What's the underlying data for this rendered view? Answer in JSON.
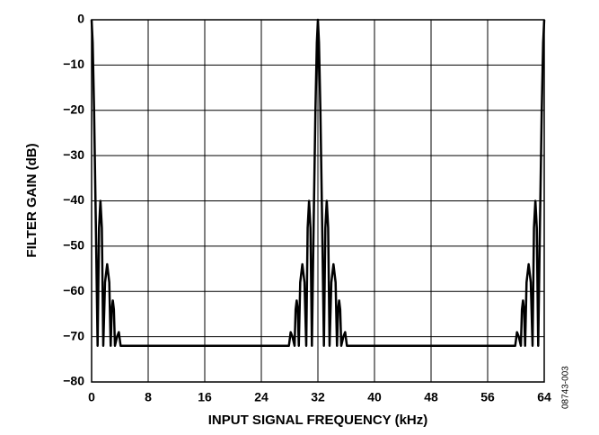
{
  "chart_data": {
    "type": "line",
    "x_label": "INPUT SIGNAL FREQUENCY (kHz)",
    "y_label": "FILTER GAIN (dB)",
    "annotation": "08743-003",
    "color": "#000000",
    "grid": true,
    "xlim": [
      0,
      64
    ],
    "ylim": [
      -80,
      0
    ],
    "xticks": [
      0,
      8,
      16,
      24,
      32,
      40,
      48,
      56,
      64
    ],
    "yticks": [
      0,
      {
        "value": -10,
        "label": "−10"
      },
      {
        "value": -20,
        "label": "−20"
      },
      {
        "value": -30,
        "label": "−30"
      },
      {
        "value": -40,
        "label": "−40"
      },
      {
        "value": -50,
        "label": "−50"
      },
      {
        "value": -60,
        "label": "−60"
      },
      {
        "value": -70,
        "label": "−70"
      },
      {
        "value": -80,
        "label": "−80"
      }
    ],
    "x": [
      0,
      0.15,
      0.35,
      0.6,
      0.85,
      1.05,
      1.25,
      1.45,
      1.65,
      1.9,
      2.2,
      2.5,
      2.7,
      2.85,
      3.0,
      3.15,
      3.3,
      3.6,
      3.85,
      4.1,
      27.9,
      28.15,
      28.4,
      28.7,
      28.85,
      29.0,
      29.15,
      29.3,
      29.5,
      29.8,
      30.1,
      30.35,
      30.55,
      30.75,
      30.95,
      31.15,
      31.4,
      31.65,
      31.85,
      32,
      32.15,
      32.35,
      32.6,
      32.85,
      33.05,
      33.25,
      33.45,
      33.65,
      33.9,
      34.2,
      34.5,
      34.7,
      34.85,
      35.0,
      35.15,
      35.3,
      35.6,
      35.85,
      36.1,
      59.9,
      60.15,
      60.4,
      60.7,
      60.85,
      61.0,
      61.15,
      61.3,
      61.5,
      61.8,
      62.1,
      62.35,
      62.55,
      62.75,
      62.95,
      63.15,
      63.4,
      63.65,
      63.85,
      64
    ],
    "values": [
      0,
      -5,
      -20,
      -45,
      -72,
      -46,
      -40,
      -46,
      -72,
      -58,
      -54,
      -58,
      -72,
      -64,
      -62,
      -64,
      -72,
      -70,
      -69,
      -72,
      -72,
      -69,
      -70,
      -72,
      -64,
      -62,
      -64,
      -72,
      -58,
      -54,
      -58,
      -72,
      -46,
      -40,
      -46,
      -72,
      -45,
      -20,
      -5,
      0,
      -5,
      -20,
      -45,
      -72,
      -46,
      -40,
      -46,
      -72,
      -58,
      -54,
      -58,
      -72,
      -64,
      -62,
      -64,
      -72,
      -70,
      -69,
      -72,
      -72,
      -69,
      -70,
      -72,
      -64,
      -62,
      -64,
      -72,
      -58,
      -54,
      -58,
      -72,
      -46,
      -40,
      -46,
      -72,
      -45,
      -20,
      -5,
      0
    ]
  }
}
